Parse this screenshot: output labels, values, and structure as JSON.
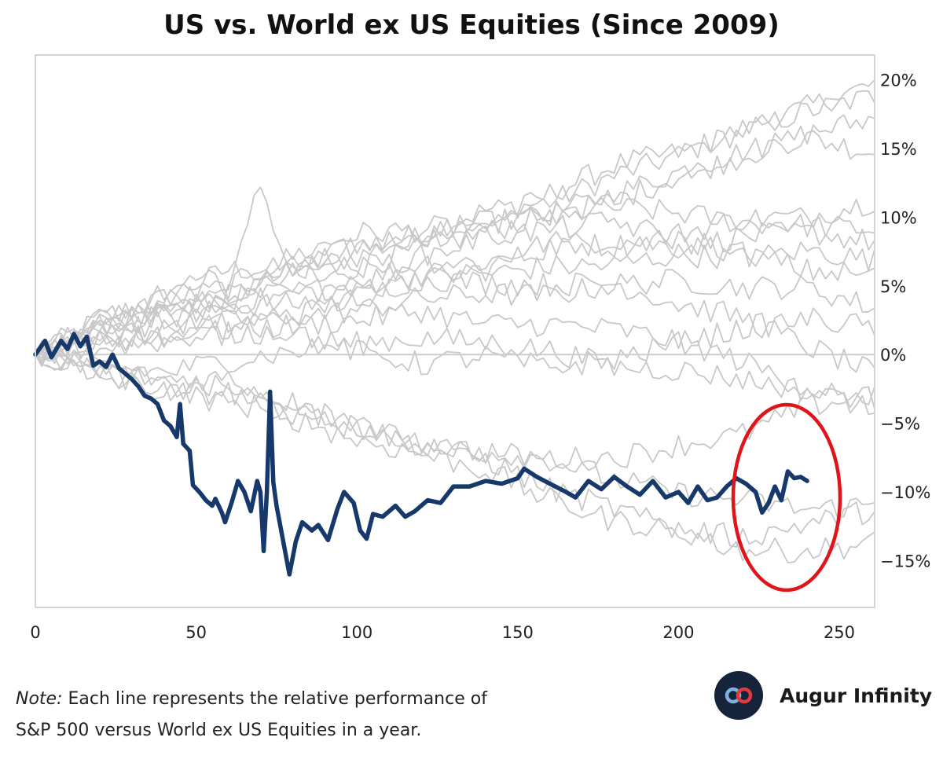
{
  "chart_data": {
    "type": "line",
    "title": "US vs. World ex US Equities (Since 2009)",
    "xlabel": "",
    "ylabel": "",
    "xlim": [
      0,
      261
    ],
    "ylim": [
      -18.4,
      21.8
    ],
    "x_ticks": [
      0,
      50,
      100,
      150,
      200,
      250
    ],
    "x_tick_labels": [
      "0",
      "50",
      "100",
      "150",
      "200",
      "250"
    ],
    "y_ticks": [
      20,
      15,
      10,
      5,
      0,
      -5,
      -10,
      -15
    ],
    "y_tick_labels": [
      "20%",
      "15%",
      "10%",
      "5%",
      "0%",
      "−5%",
      "−10%",
      "−15%"
    ],
    "y_axis_position": "right",
    "grid": false,
    "zero_line": true,
    "highlight_color": "#17386b",
    "background_color": "#c8c8c8",
    "annotation_color": "#e0141b",
    "highlight_series": [
      [
        0,
        0.0
      ],
      [
        3,
        1.0
      ],
      [
        5,
        -0.2
      ],
      [
        8,
        1.0
      ],
      [
        10,
        0.4
      ],
      [
        12,
        1.5
      ],
      [
        14,
        0.6
      ],
      [
        16,
        1.3
      ],
      [
        18,
        -0.8
      ],
      [
        20,
        -0.5
      ],
      [
        22,
        -0.9
      ],
      [
        24,
        0.0
      ],
      [
        26,
        -1.0
      ],
      [
        28,
        -1.4
      ],
      [
        30,
        -1.8
      ],
      [
        32,
        -2.3
      ],
      [
        34,
        -3.0
      ],
      [
        36,
        -3.2
      ],
      [
        38,
        -3.6
      ],
      [
        40,
        -4.8
      ],
      [
        42,
        -5.2
      ],
      [
        44,
        -6.0
      ],
      [
        45,
        -3.6
      ],
      [
        46,
        -6.5
      ],
      [
        48,
        -7.0
      ],
      [
        49,
        -9.5
      ],
      [
        51,
        -10.0
      ],
      [
        53,
        -10.6
      ],
      [
        55,
        -11.0
      ],
      [
        56,
        -10.5
      ],
      [
        58,
        -11.5
      ],
      [
        59,
        -12.2
      ],
      [
        61,
        -10.8
      ],
      [
        63,
        -9.2
      ],
      [
        65,
        -10.0
      ],
      [
        67,
        -11.4
      ],
      [
        69,
        -9.2
      ],
      [
        70,
        -10.0
      ],
      [
        71,
        -14.3
      ],
      [
        72,
        -10.0
      ],
      [
        73,
        -2.7
      ],
      [
        74,
        -9.3
      ],
      [
        75,
        -11.0
      ],
      [
        77,
        -13.5
      ],
      [
        79,
        -16.0
      ],
      [
        81,
        -13.6
      ],
      [
        83,
        -12.2
      ],
      [
        86,
        -12.8
      ],
      [
        88,
        -12.4
      ],
      [
        91,
        -13.5
      ],
      [
        94,
        -11.2
      ],
      [
        96,
        -10.0
      ],
      [
        99,
        -10.8
      ],
      [
        101,
        -12.8
      ],
      [
        103,
        -13.4
      ],
      [
        105,
        -11.6
      ],
      [
        108,
        -11.8
      ],
      [
        112,
        -11.0
      ],
      [
        115,
        -11.8
      ],
      [
        118,
        -11.4
      ],
      [
        122,
        -10.6
      ],
      [
        126,
        -10.8
      ],
      [
        130,
        -9.6
      ],
      [
        135,
        -9.6
      ],
      [
        140,
        -9.2
      ],
      [
        145,
        -9.4
      ],
      [
        150,
        -9.0
      ],
      [
        152,
        -8.3
      ],
      [
        156,
        -8.9
      ],
      [
        160,
        -9.4
      ],
      [
        165,
        -10.0
      ],
      [
        168,
        -10.4
      ],
      [
        172,
        -9.2
      ],
      [
        176,
        -9.8
      ],
      [
        180,
        -8.9
      ],
      [
        184,
        -9.6
      ],
      [
        188,
        -10.2
      ],
      [
        192,
        -9.2
      ],
      [
        196,
        -10.4
      ],
      [
        200,
        -10.0
      ],
      [
        203,
        -10.8
      ],
      [
        206,
        -9.6
      ],
      [
        209,
        -10.6
      ],
      [
        212,
        -10.4
      ],
      [
        215,
        -9.6
      ],
      [
        218,
        -9.0
      ],
      [
        221,
        -9.4
      ],
      [
        224,
        -10.0
      ],
      [
        226,
        -11.5
      ],
      [
        228,
        -10.8
      ],
      [
        230,
        -9.6
      ],
      [
        232,
        -10.6
      ],
      [
        234,
        -8.5
      ],
      [
        236,
        -9.0
      ],
      [
        238,
        -8.9
      ],
      [
        240,
        -9.2
      ]
    ],
    "background_series": [
      [
        [
          0,
          0.0
        ],
        [
          20,
          2.6
        ],
        [
          40,
          4.1
        ],
        [
          60,
          6.2
        ],
        [
          80,
          6.2
        ],
        [
          100,
          7.1
        ],
        [
          120,
          8.9
        ],
        [
          140,
          10.5
        ],
        [
          160,
          11.1
        ],
        [
          180,
          13.0
        ],
        [
          200,
          14.5
        ],
        [
          220,
          16.4
        ],
        [
          240,
          18.0
        ],
        [
          261,
          19.7
        ]
      ],
      [
        [
          0,
          0.0
        ],
        [
          20,
          2.4
        ],
        [
          40,
          3.0
        ],
        [
          60,
          4.4
        ],
        [
          80,
          5.9
        ],
        [
          100,
          7.8
        ],
        [
          120,
          8.4
        ],
        [
          140,
          9.4
        ],
        [
          160,
          11.7
        ],
        [
          180,
          13.8
        ],
        [
          200,
          14.7
        ],
        [
          220,
          16.2
        ],
        [
          240,
          17.7
        ],
        [
          261,
          18.8
        ]
      ],
      [
        [
          0,
          0.0
        ],
        [
          20,
          2.1
        ],
        [
          40,
          3.3
        ],
        [
          60,
          4.2
        ],
        [
          80,
          6.1
        ],
        [
          100,
          6.3
        ],
        [
          120,
          7.7
        ],
        [
          140,
          8.9
        ],
        [
          160,
          10.2
        ],
        [
          180,
          11.7
        ],
        [
          200,
          13.3
        ],
        [
          220,
          14.8
        ],
        [
          240,
          15.8
        ],
        [
          261,
          14.7
        ]
      ],
      [
        [
          0,
          0.0
        ],
        [
          20,
          1.5
        ],
        [
          40,
          3.6
        ],
        [
          60,
          4.1
        ],
        [
          80,
          6.3
        ],
        [
          100,
          7.9
        ],
        [
          120,
          8.7
        ],
        [
          140,
          9.7
        ],
        [
          160,
          10.1
        ],
        [
          180,
          11.2
        ],
        [
          200,
          13.0
        ],
        [
          220,
          14.4
        ],
        [
          240,
          16.1
        ],
        [
          261,
          17.2
        ]
      ],
      [
        [
          0,
          0.0
        ],
        [
          20,
          2.7
        ],
        [
          40,
          3.9
        ],
        [
          60,
          4.9
        ],
        [
          80,
          7.2
        ],
        [
          100,
          8.8
        ],
        [
          120,
          9.1
        ],
        [
          140,
          9.6
        ],
        [
          160,
          10.1
        ],
        [
          180,
          10.7
        ],
        [
          200,
          10.3
        ],
        [
          220,
          9.6
        ],
        [
          240,
          9.4
        ],
        [
          261,
          9.1
        ]
      ],
      [
        [
          0,
          0.0
        ],
        [
          20,
          1.6
        ],
        [
          40,
          3.3
        ],
        [
          60,
          4.1
        ],
        [
          80,
          4.5
        ],
        [
          100,
          5.2
        ],
        [
          120,
          6.8
        ],
        [
          140,
          6.7
        ],
        [
          160,
          8.2
        ],
        [
          180,
          7.9
        ],
        [
          200,
          8.8
        ],
        [
          220,
          9.9
        ],
        [
          240,
          10.0
        ],
        [
          261,
          11.2
        ]
      ],
      [
        [
          0,
          0.0
        ],
        [
          20,
          1.3
        ],
        [
          40,
          1.8
        ],
        [
          60,
          3.6
        ],
        [
          80,
          3.7
        ],
        [
          100,
          4.1
        ],
        [
          120,
          5.3
        ],
        [
          140,
          6.2
        ],
        [
          160,
          7.9
        ],
        [
          180,
          8.4
        ],
        [
          200,
          7.8
        ],
        [
          220,
          8.6
        ],
        [
          240,
          8.9
        ],
        [
          261,
          8.2
        ]
      ],
      [
        [
          0,
          0.0
        ],
        [
          20,
          2.1
        ],
        [
          40,
          2.6
        ],
        [
          60,
          3.6
        ],
        [
          80,
          4.4
        ],
        [
          100,
          5.0
        ],
        [
          120,
          5.9
        ],
        [
          140,
          5.9
        ],
        [
          160,
          6.4
        ],
        [
          180,
          6.5
        ],
        [
          200,
          7.3
        ],
        [
          220,
          7.0
        ],
        [
          240,
          7.6
        ],
        [
          261,
          6.9
        ]
      ],
      [
        [
          0,
          0.0
        ],
        [
          20,
          0.9
        ],
        [
          40,
          1.3
        ],
        [
          60,
          2.4
        ],
        [
          80,
          2.8
        ],
        [
          100,
          3.2
        ],
        [
          120,
          4.1
        ],
        [
          140,
          4.4
        ],
        [
          160,
          4.3
        ],
        [
          180,
          5.1
        ],
        [
          200,
          5.4
        ],
        [
          220,
          4.9
        ],
        [
          240,
          4.9
        ],
        [
          261,
          3.4
        ]
      ],
      [
        [
          0,
          0.0
        ],
        [
          20,
          1.8
        ],
        [
          40,
          2.3
        ],
        [
          60,
          2.2
        ],
        [
          80,
          2.8
        ],
        [
          100,
          4.2
        ],
        [
          120,
          5.6
        ],
        [
          140,
          5.2
        ],
        [
          160,
          5.1
        ],
        [
          180,
          5.2
        ],
        [
          200,
          3.7
        ],
        [
          220,
          2.7
        ],
        [
          240,
          0.6
        ],
        [
          261,
          -1.4
        ]
      ],
      [
        [
          0,
          0.0
        ],
        [
          20,
          0.5
        ],
        [
          40,
          1.0
        ],
        [
          60,
          1.8
        ],
        [
          80,
          2.1
        ],
        [
          100,
          2.5
        ],
        [
          120,
          3.2
        ],
        [
          140,
          2.2
        ],
        [
          160,
          2.2
        ],
        [
          180,
          1.8
        ],
        [
          200,
          1.0
        ],
        [
          220,
          -0.5
        ],
        [
          240,
          -2.4
        ],
        [
          261,
          -4.2
        ]
      ],
      [
        [
          0,
          0.0
        ],
        [
          20,
          -0.8
        ],
        [
          40,
          -1.3
        ],
        [
          60,
          -0.4
        ],
        [
          80,
          0.2
        ],
        [
          100,
          0.8
        ],
        [
          120,
          1.2
        ],
        [
          140,
          0.9
        ],
        [
          160,
          0.3
        ],
        [
          180,
          -0.9
        ],
        [
          200,
          -1.1
        ],
        [
          220,
          -1.8
        ],
        [
          240,
          -2.6
        ],
        [
          261,
          -3.2
        ]
      ],
      [
        [
          0,
          0.0
        ],
        [
          20,
          -1.2
        ],
        [
          40,
          -2.4
        ],
        [
          60,
          -2.4
        ],
        [
          80,
          -4.4
        ],
        [
          100,
          -5.3
        ],
        [
          120,
          -6.5
        ],
        [
          140,
          -7.1
        ],
        [
          160,
          -7.6
        ],
        [
          180,
          -7.5
        ],
        [
          200,
          -6.6
        ],
        [
          220,
          -5.8
        ],
        [
          240,
          -3.8
        ],
        [
          261,
          -2.9
        ]
      ],
      [
        [
          0,
          0.0
        ],
        [
          20,
          -1.3
        ],
        [
          40,
          -2.4
        ],
        [
          60,
          -3.6
        ],
        [
          80,
          -4.1
        ],
        [
          100,
          -4.8
        ],
        [
          120,
          -6.6
        ],
        [
          140,
          -7.1
        ],
        [
          160,
          -7.6
        ],
        [
          180,
          -9.1
        ],
        [
          200,
          -10.1
        ],
        [
          220,
          -10.6
        ],
        [
          240,
          -11.3
        ],
        [
          261,
          -10.9
        ]
      ],
      [
        [
          0,
          0.0
        ],
        [
          20,
          -1.6
        ],
        [
          40,
          -2.9
        ],
        [
          60,
          -2.7
        ],
        [
          80,
          -4.6
        ],
        [
          100,
          -6.2
        ],
        [
          120,
          -7.2
        ],
        [
          140,
          -8.4
        ],
        [
          160,
          -10.6
        ],
        [
          180,
          -12.1
        ],
        [
          200,
          -12.7
        ],
        [
          220,
          -13.3
        ],
        [
          240,
          -12.3
        ],
        [
          261,
          -11.3
        ]
      ],
      [
        [
          0,
          0.0
        ],
        [
          20,
          -1.1
        ],
        [
          40,
          -1.8
        ],
        [
          60,
          -1.7
        ],
        [
          80,
          -3.5
        ],
        [
          100,
          -5.2
        ],
        [
          120,
          -6.6
        ],
        [
          140,
          -7.6
        ],
        [
          160,
          -9.8
        ],
        [
          180,
          -11.2
        ],
        [
          200,
          -12.9
        ],
        [
          220,
          -14.2
        ],
        [
          240,
          -14.3
        ],
        [
          261,
          -13.7
        ]
      ],
      [
        [
          0,
          0.0
        ],
        [
          20,
          1.6
        ],
        [
          40,
          4.5
        ],
        [
          60,
          5.6
        ],
        [
          70,
          12.0
        ],
        [
          80,
          6.1
        ],
        [
          100,
          6.3
        ],
        [
          120,
          7.1
        ],
        [
          140,
          8.6
        ],
        [
          160,
          9.1
        ],
        [
          180,
          9.7
        ],
        [
          200,
          8.3
        ],
        [
          220,
          7.4
        ],
        [
          240,
          6.1
        ],
        [
          261,
          5.8
        ]
      ],
      [
        [
          0,
          0.0
        ],
        [
          20,
          1.4
        ],
        [
          40,
          1.4
        ],
        [
          60,
          1.5
        ],
        [
          80,
          1.8
        ],
        [
          100,
          0.2
        ],
        [
          120,
          -0.7
        ],
        [
          140,
          -0.1
        ],
        [
          160,
          -1.0
        ],
        [
          180,
          -0.3
        ],
        [
          200,
          0.8
        ],
        [
          220,
          1.9
        ],
        [
          240,
          2.6
        ],
        [
          261,
          2.0
        ]
      ]
    ]
  },
  "note": {
    "prefix": "Note:",
    "line1": " Each line represents the relative performance of",
    "line2": "S&P 500 versus World ex US Equities in a year."
  },
  "brand": {
    "name": "Augur Infinity",
    "logo_icon": "infinity-icon"
  }
}
